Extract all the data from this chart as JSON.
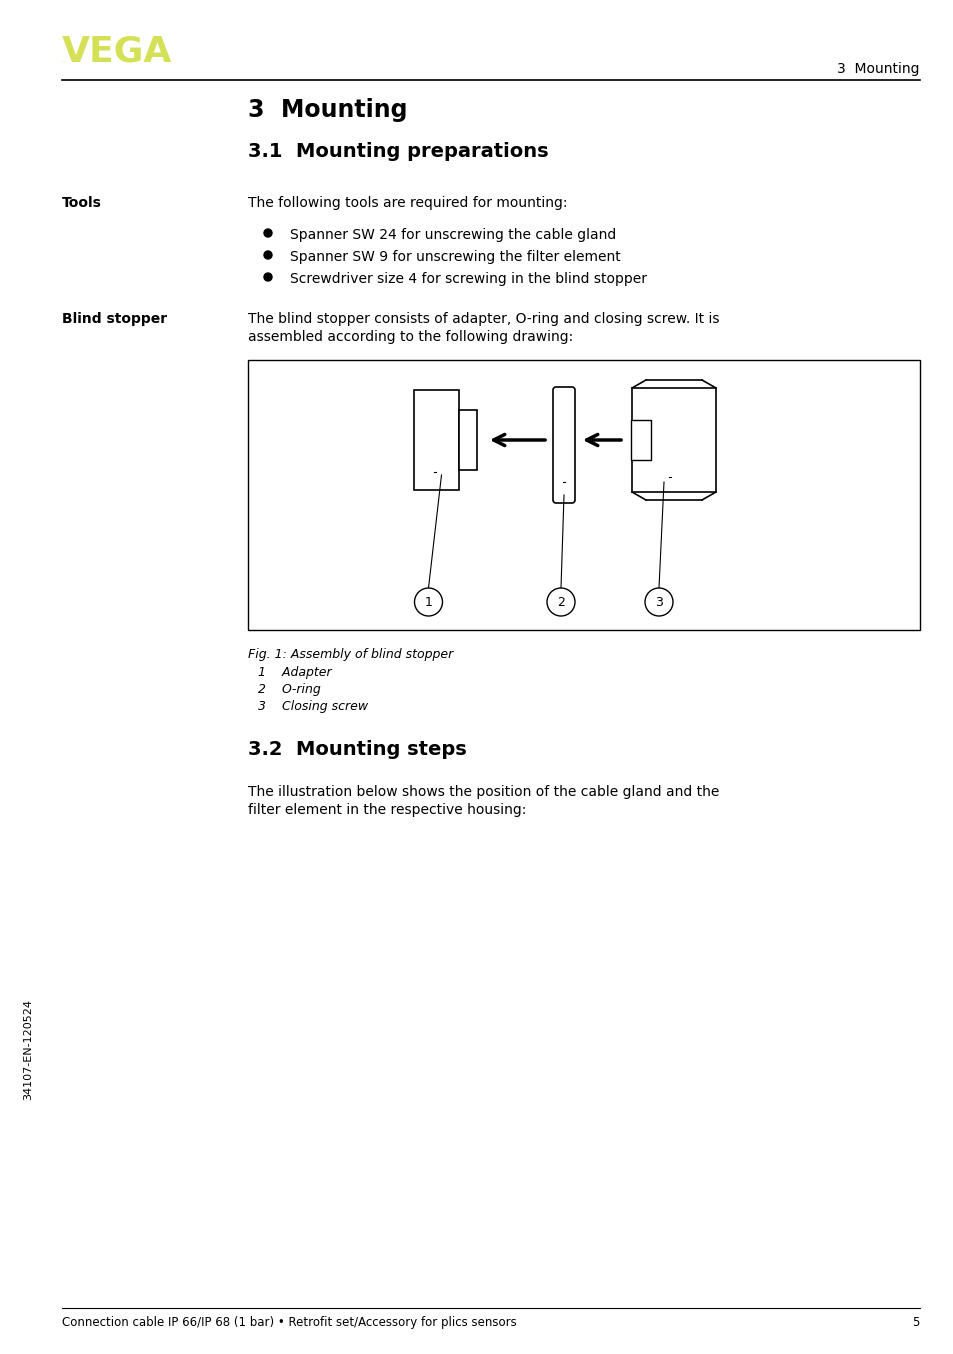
{
  "page_bg": "#ffffff",
  "vega_logo_color": "#d4e157",
  "header_right_text": "3  Mounting",
  "footer_left_text": "Connection cable IP 66/IP 68 (1 bar) • Retrofit set/Accessory for plics sensors",
  "footer_right_text": "5",
  "footer_rotated": "34107-EN-120524",
  "title_h1": "3  Mounting",
  "title_h2": "3.1  Mounting preparations",
  "title_h3": "3.2  Mounting steps",
  "label_tools": "Tools",
  "label_blind": "Blind stopper",
  "tools_intro": "The following tools are required for mounting:",
  "tools_bullets": [
    "Spanner SW 24 for unscrewing the cable gland",
    "Spanner SW 9 for unscrewing the filter element",
    "Screwdriver size 4 for screwing in the blind stopper"
  ],
  "blind_text1": "The blind stopper consists of adapter, O-ring and closing screw. It is",
  "blind_text2": "assembled according to the following drawing:",
  "fig_caption": "Fig. 1: Assembly of blind stopper",
  "fig_items": [
    "1    Adapter",
    "2    O-ring",
    "3    Closing screw"
  ],
  "mount_text1": "The illustration below shows the position of the cable gland and the",
  "mount_text2": "filter element in the respective housing:"
}
